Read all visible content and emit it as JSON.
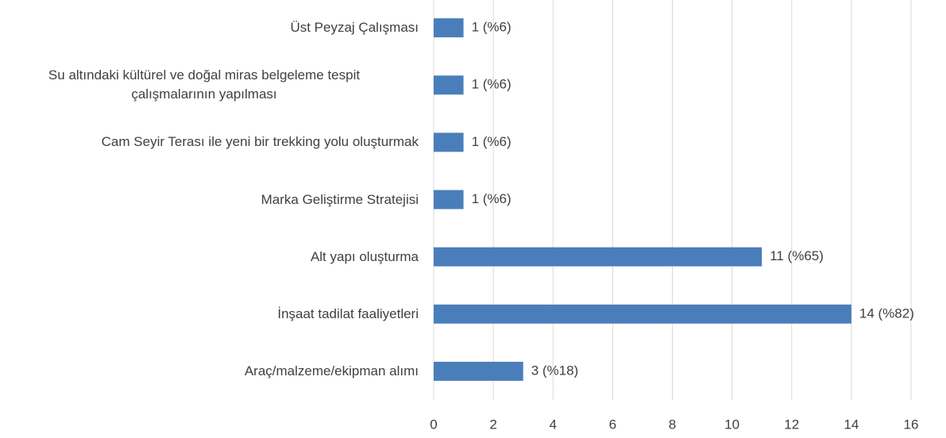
{
  "chart_data": {
    "type": "hbar",
    "categories": [
      "Üst Peyzaj Çalışması",
      "Su altındaki kültürel ve doğal miras belgeleme tespit\nçalışmalarının yapılması",
      "Cam Seyir Terası ile yeni bir trekking yolu oluşturmak",
      "Marka Geliştirme Stratejisi",
      "Alt yapı oluşturma",
      "İnşaat tadilat faaliyetleri",
      "Araç/malzeme/ekipman alımı"
    ],
    "values": [
      1,
      1,
      1,
      1,
      11,
      14,
      3
    ],
    "value_labels": [
      "1 (%6)",
      "1 (%6)",
      "1 (%6)",
      "1 (%6)",
      "11 (%65)",
      "14 (%82)",
      "3 (%18)"
    ],
    "color": "#4a7ebb",
    "xlim": [
      0,
      16
    ],
    "xticks": [
      0,
      2,
      4,
      6,
      8,
      10,
      12,
      14,
      16
    ],
    "grid": true
  }
}
